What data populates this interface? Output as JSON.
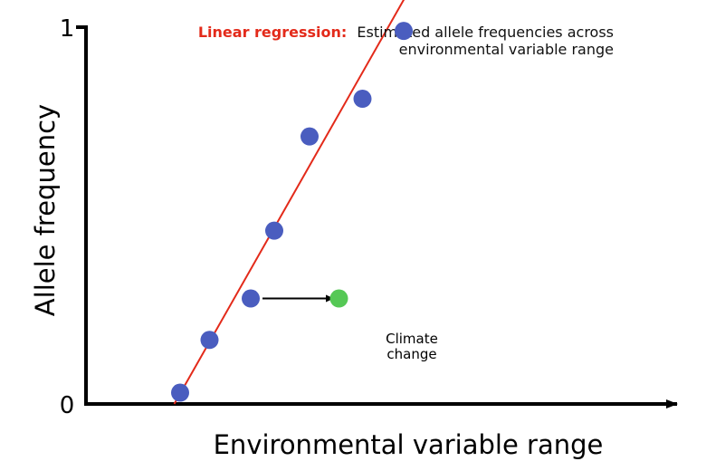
{
  "chart_data": {
    "type": "scatter",
    "xlabel": "Environmental variable range",
    "ylabel": "Allele frequency",
    "ylim": [
      0,
      1
    ],
    "y_ticks": [
      "0",
      "1"
    ],
    "series": [
      {
        "color": "#4a5dbf",
        "points": [
          {
            "x": 0.16,
            "y": 0.03
          },
          {
            "x": 0.21,
            "y": 0.17
          },
          {
            "x": 0.28,
            "y": 0.28
          },
          {
            "x": 0.32,
            "y": 0.46
          },
          {
            "x": 0.38,
            "y": 0.71
          },
          {
            "x": 0.47,
            "y": 0.81
          },
          {
            "x": 0.54,
            "y": 0.99
          }
        ]
      },
      {
        "color": "#55c855",
        "points": [
          {
            "x": 0.43,
            "y": 0.28
          }
        ]
      }
    ],
    "regression": {
      "label": "Linear regression:",
      "description_line1": "Estimated allele frequencies across",
      "description_line2": "environmental variable range",
      "color": "#e32a1a",
      "start": {
        "x": 0.15,
        "y": 0.0
      },
      "end": {
        "x": 0.59,
        "y": 1.21
      }
    },
    "annotation": {
      "line1": "Climate",
      "line2": "change",
      "arrow_from": {
        "x": 0.3,
        "y": 0.28
      },
      "arrow_to": {
        "x": 0.42,
        "y": 0.28
      }
    }
  }
}
